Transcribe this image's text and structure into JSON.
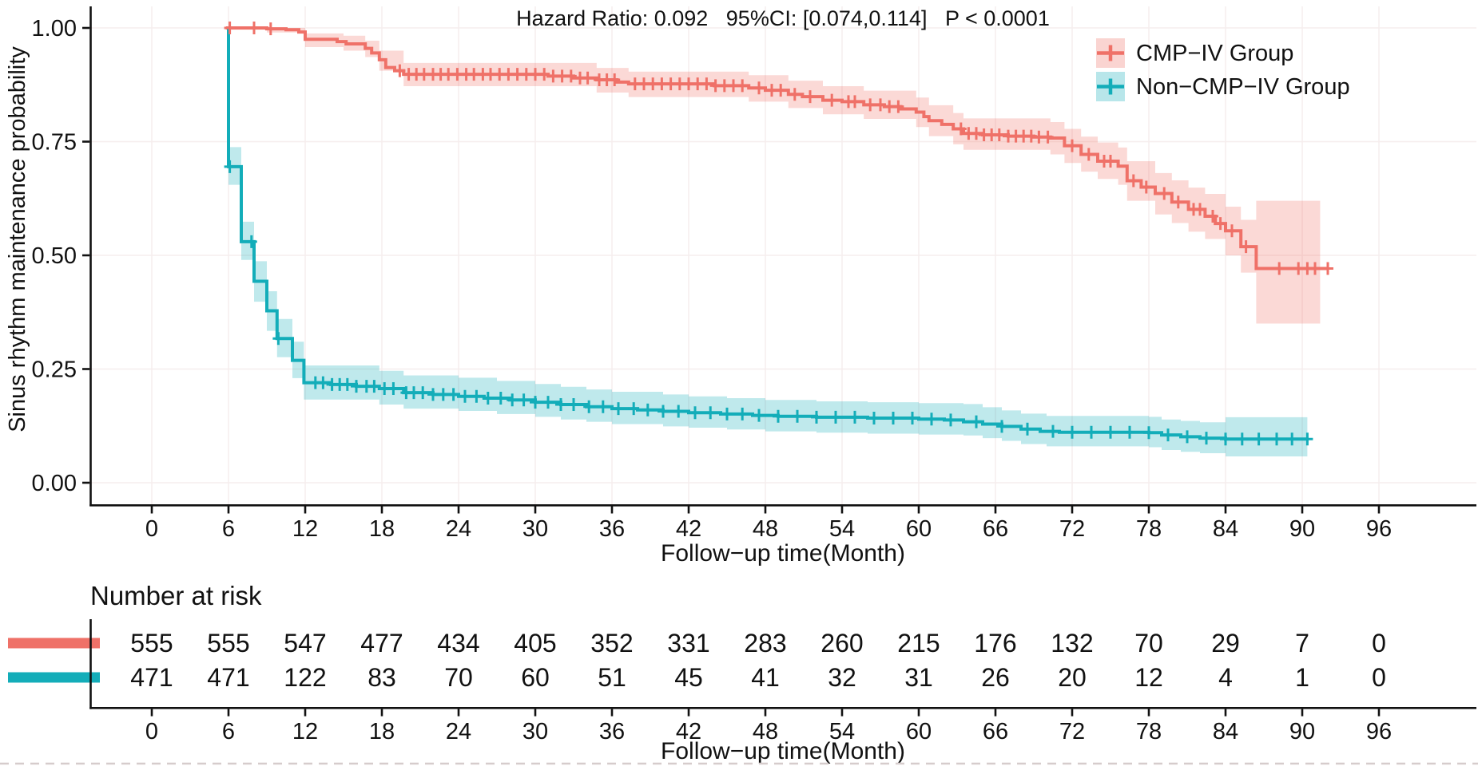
{
  "chart_data": {
    "type": "line",
    "subtype": "kaplan-meier-step",
    "title": "Hazard Ratio: 0.092   95%CI: [0.074,0.114]   P < 0.0001",
    "annotation": {
      "hazard_ratio": 0.092,
      "ci_low": 0.074,
      "ci_high": 0.114,
      "p_value": "P < 0.0001"
    },
    "xlabel": "Follow−up time(Month)",
    "ylabel": "Sinus rhythm maintenance probability",
    "xlim": [
      0,
      102
    ],
    "ylim": [
      0,
      1.05
    ],
    "grid": true,
    "legend_position": "top-right",
    "colors": {
      "grid": "#f6eeee",
      "axis": "#111111",
      "text": "#111111",
      "bottom_dashes": "#d6cccc"
    },
    "x_ticks": [
      0,
      6,
      12,
      18,
      24,
      30,
      36,
      42,
      48,
      54,
      60,
      66,
      72,
      78,
      84,
      90,
      96
    ],
    "y_ticks": [
      {
        "value": 0.0,
        "label": "0.00"
      },
      {
        "value": 0.25,
        "label": "0.25"
      },
      {
        "value": 0.5,
        "label": "0.50"
      },
      {
        "value": 0.75,
        "label": "0.75"
      },
      {
        "value": 1.0,
        "label": "1.00"
      }
    ],
    "series": [
      {
        "name": "CMP−IV Group",
        "color": "#ef7168",
        "band_opacity": 0.27,
        "band_end": 91.4,
        "points": [
          [
            5.8,
            1.0
          ],
          [
            9,
            0.998
          ],
          [
            10.5,
            0.996
          ],
          [
            11.5,
            0.991
          ],
          [
            12,
            0.975
          ],
          [
            14.5,
            0.97
          ],
          [
            15.2,
            0.965
          ],
          [
            16.7,
            0.955
          ],
          [
            17.2,
            0.945
          ],
          [
            17.8,
            0.93
          ],
          [
            18.3,
            0.913
          ],
          [
            19,
            0.906
          ],
          [
            19.7,
            0.898
          ],
          [
            31,
            0.894
          ],
          [
            33,
            0.89
          ],
          [
            34.8,
            0.886
          ],
          [
            36.4,
            0.881
          ],
          [
            37.3,
            0.877
          ],
          [
            44,
            0.873
          ],
          [
            46.7,
            0.868
          ],
          [
            48,
            0.863
          ],
          [
            49.8,
            0.854
          ],
          [
            50.9,
            0.849
          ],
          [
            52.5,
            0.841
          ],
          [
            54,
            0.838
          ],
          [
            55.7,
            0.831
          ],
          [
            57.3,
            0.827
          ],
          [
            58.6,
            0.822
          ],
          [
            59.8,
            0.815
          ],
          [
            60.4,
            0.805
          ],
          [
            60.8,
            0.796
          ],
          [
            61.8,
            0.788
          ],
          [
            62.7,
            0.778
          ],
          [
            63.5,
            0.768
          ],
          [
            65,
            0.765
          ],
          [
            67,
            0.762
          ],
          [
            69,
            0.76
          ],
          [
            70.3,
            0.758
          ],
          [
            71.4,
            0.741
          ],
          [
            72.7,
            0.722
          ],
          [
            74,
            0.707
          ],
          [
            75.6,
            0.696
          ],
          [
            76.3,
            0.664
          ],
          [
            77.4,
            0.65
          ],
          [
            78.5,
            0.636
          ],
          [
            79.8,
            0.617
          ],
          [
            81.1,
            0.601
          ],
          [
            82.4,
            0.586
          ],
          [
            83.2,
            0.57
          ],
          [
            84,
            0.554
          ],
          [
            85.2,
            0.519
          ],
          [
            86.4,
            0.471
          ],
          [
            92,
            0.471
          ]
        ],
        "censors": [
          6.1,
          8,
          9.3,
          19.4,
          20.1,
          20.7,
          21.3,
          22,
          22.6,
          23.2,
          23.9,
          24.6,
          25.2,
          25.9,
          26.5,
          27.2,
          27.9,
          28.6,
          29.3,
          30,
          30.7,
          31.4,
          32.1,
          32.8,
          33.5,
          34.1,
          35,
          35.6,
          36.2,
          37.8,
          38.5,
          39.2,
          39.9,
          40.6,
          41.3,
          42,
          42.7,
          43.4,
          44.1,
          44.8,
          45.5,
          46.2,
          47.5,
          48.5,
          49.2,
          50.3,
          51.5,
          53.2,
          54.5,
          55,
          56.2,
          57,
          57.7,
          58.4,
          63.3,
          63.9,
          64.5,
          65.1,
          65.7,
          66.3,
          67,
          67.6,
          68.2,
          68.8,
          69.4,
          70.1,
          72,
          73.3,
          74.5,
          75,
          76.8,
          77.8,
          79.2,
          80.3,
          81.5,
          82,
          83,
          83.6,
          84.5,
          85.6,
          88.2,
          89.7,
          90.4,
          91,
          92
        ],
        "band": [
          [
            5.8,
            0.996,
            1.0
          ],
          [
            9,
            0.99,
            1.0
          ],
          [
            12,
            0.958,
            0.988
          ],
          [
            15,
            0.95,
            0.983
          ],
          [
            16.7,
            0.936,
            0.972
          ],
          [
            17.8,
            0.906,
            0.95
          ],
          [
            19.7,
            0.872,
            0.923
          ],
          [
            34.8,
            0.858,
            0.912
          ],
          [
            37.3,
            0.848,
            0.904
          ],
          [
            46.7,
            0.838,
            0.896
          ],
          [
            49.8,
            0.824,
            0.884
          ],
          [
            52.5,
            0.81,
            0.872
          ],
          [
            55.7,
            0.8,
            0.862
          ],
          [
            59.8,
            0.782,
            0.847
          ],
          [
            60.8,
            0.762,
            0.83
          ],
          [
            62.7,
            0.744,
            0.813
          ],
          [
            63.5,
            0.732,
            0.801
          ],
          [
            70.3,
            0.722,
            0.793
          ],
          [
            71.4,
            0.703,
            0.778
          ],
          [
            72.7,
            0.684,
            0.761
          ],
          [
            74,
            0.668,
            0.748
          ],
          [
            75.6,
            0.655,
            0.737
          ],
          [
            76.3,
            0.62,
            0.707
          ],
          [
            78.5,
            0.59,
            0.681
          ],
          [
            79.8,
            0.571,
            0.665
          ],
          [
            81.1,
            0.552,
            0.649
          ],
          [
            82.4,
            0.536,
            0.635
          ],
          [
            84,
            0.5,
            0.607
          ],
          [
            85.2,
            0.462,
            0.578
          ],
          [
            86.4,
            0.35,
            0.62
          ]
        ]
      },
      {
        "name": "Non−CMP−IV Group",
        "color": "#13adb9",
        "band_opacity": 0.27,
        "band_end": 90.4,
        "points": [
          [
            6,
            1.0
          ],
          [
            6,
            0.695
          ],
          [
            7,
            0.53
          ],
          [
            8,
            0.443
          ],
          [
            9,
            0.378
          ],
          [
            9.8,
            0.317
          ],
          [
            11,
            0.269
          ],
          [
            11.9,
            0.22
          ],
          [
            14,
            0.216
          ],
          [
            16,
            0.212
          ],
          [
            17.8,
            0.207
          ],
          [
            19.7,
            0.198
          ],
          [
            22,
            0.194
          ],
          [
            24,
            0.19
          ],
          [
            26,
            0.186
          ],
          [
            28,
            0.182
          ],
          [
            30,
            0.177
          ],
          [
            32,
            0.172
          ],
          [
            34,
            0.167
          ],
          [
            36,
            0.163
          ],
          [
            38,
            0.16
          ],
          [
            40,
            0.157
          ],
          [
            42,
            0.154
          ],
          [
            44.5,
            0.151
          ],
          [
            47,
            0.148
          ],
          [
            49,
            0.146
          ],
          [
            52,
            0.144
          ],
          [
            56,
            0.142
          ],
          [
            60,
            0.14
          ],
          [
            62,
            0.138
          ],
          [
            63.5,
            0.134
          ],
          [
            65,
            0.129
          ],
          [
            66.5,
            0.124
          ],
          [
            68,
            0.118
          ],
          [
            69.5,
            0.113
          ],
          [
            71,
            0.111
          ],
          [
            78,
            0.11
          ],
          [
            79,
            0.105
          ],
          [
            80.5,
            0.101
          ],
          [
            82,
            0.098
          ],
          [
            84,
            0.096
          ],
          [
            90.5,
            0.096
          ]
        ],
        "censors": [
          6.1,
          7.8,
          9.9,
          12.8,
          13.4,
          14.1,
          14.7,
          15.3,
          16,
          16.8,
          17.4,
          18.2,
          18.9,
          19.9,
          20.5,
          21.2,
          22,
          22.8,
          23.6,
          24.5,
          25.4,
          26.3,
          27.3,
          28.2,
          29.1,
          30,
          31,
          32,
          33,
          34.2,
          35.3,
          36.5,
          37.7,
          38.8,
          40,
          41.2,
          42.5,
          43.7,
          45,
          46.2,
          47.5,
          49,
          50.5,
          52,
          53.5,
          55,
          56.5,
          58,
          59.5,
          61,
          62.5,
          64.5,
          66.5,
          68.5,
          70.5,
          72,
          73.5,
          75,
          76.5,
          78,
          79.5,
          81,
          82.5,
          84,
          85.3,
          86.6,
          88,
          89.2,
          90.4
        ],
        "band": [
          [
            6,
            0.655,
            0.738
          ],
          [
            7,
            0.49,
            0.574
          ],
          [
            8,
            0.398,
            0.487
          ],
          [
            9,
            0.334,
            0.421
          ],
          [
            9.8,
            0.276,
            0.36
          ],
          [
            11,
            0.23,
            0.31
          ],
          [
            11.9,
            0.183,
            0.258
          ],
          [
            17.8,
            0.172,
            0.246
          ],
          [
            19.7,
            0.163,
            0.236
          ],
          [
            24,
            0.158,
            0.231
          ],
          [
            27,
            0.151,
            0.224
          ],
          [
            30,
            0.145,
            0.217
          ],
          [
            32,
            0.139,
            0.211
          ],
          [
            34,
            0.134,
            0.205
          ],
          [
            36,
            0.129,
            0.2
          ],
          [
            40,
            0.124,
            0.194
          ],
          [
            42,
            0.121,
            0.19
          ],
          [
            45,
            0.117,
            0.186
          ],
          [
            48,
            0.113,
            0.182
          ],
          [
            52,
            0.11,
            0.179
          ],
          [
            56,
            0.108,
            0.177
          ],
          [
            60,
            0.106,
            0.175
          ],
          [
            63.5,
            0.104,
            0.173
          ],
          [
            65,
            0.098,
            0.166
          ],
          [
            66.5,
            0.092,
            0.159
          ],
          [
            68,
            0.085,
            0.152
          ],
          [
            70,
            0.08,
            0.147
          ],
          [
            78,
            0.078,
            0.145
          ],
          [
            79,
            0.072,
            0.139
          ],
          [
            80.5,
            0.068,
            0.136
          ],
          [
            82,
            0.065,
            0.133
          ],
          [
            84,
            0.058,
            0.144
          ]
        ]
      }
    ]
  },
  "risk_table": {
    "heading": "Number at risk",
    "xlabel": "Follow−up time(Month)",
    "x_ticks": [
      0,
      6,
      12,
      18,
      24,
      30,
      36,
      42,
      48,
      54,
      60,
      66,
      72,
      78,
      84,
      90,
      96
    ],
    "rows": [
      {
        "name": "CMP−IV Group",
        "color": "#ef7168",
        "values": [
          555,
          555,
          547,
          477,
          434,
          405,
          352,
          331,
          283,
          260,
          215,
          176,
          132,
          70,
          29,
          7,
          0
        ]
      },
      {
        "name": "Non−CMP−IV Group",
        "color": "#13adb9",
        "values": [
          471,
          471,
          122,
          83,
          70,
          60,
          51,
          45,
          41,
          32,
          31,
          26,
          20,
          12,
          4,
          1,
          0
        ]
      }
    ]
  }
}
